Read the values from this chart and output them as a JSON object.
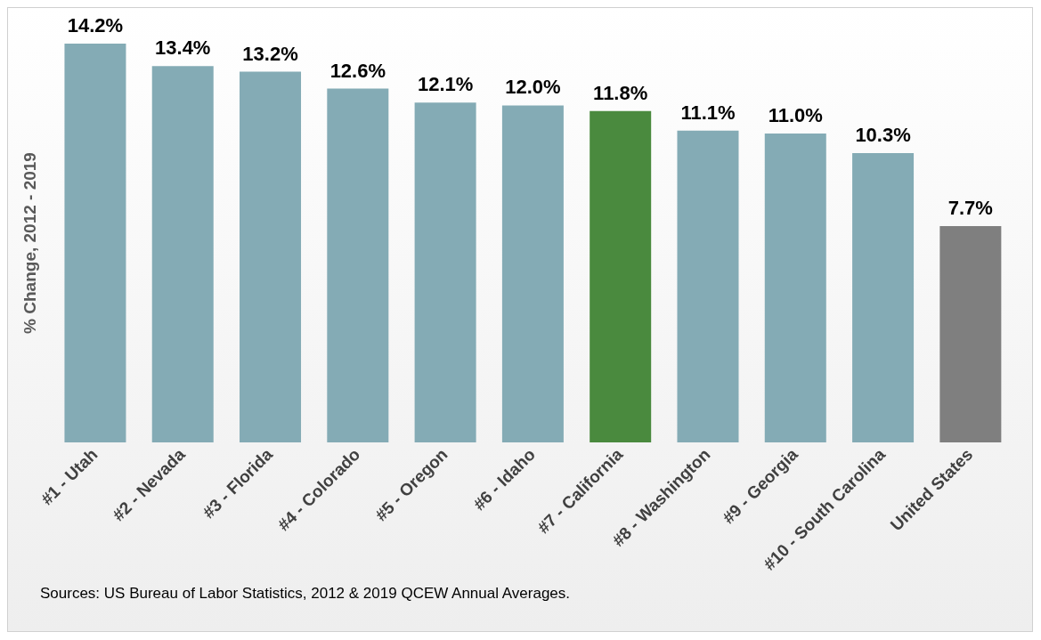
{
  "chart_data": {
    "type": "bar",
    "ylabel": "% Change, 2012 - 2019",
    "categories": [
      "#1 - Utah",
      "#2 - Nevada",
      "#3 - Florida",
      "#4 - Colorado",
      "#5 - Oregon",
      "#6 - Idaho",
      "#7 - California",
      "#8 - Washington",
      "#9 - Georgia",
      "#10 - South Carolina",
      "United States"
    ],
    "values": [
      14.2,
      13.4,
      13.2,
      12.6,
      12.1,
      12.0,
      11.8,
      11.1,
      11.0,
      10.3,
      7.7
    ],
    "colors": [
      "#84abb5",
      "#84abb5",
      "#84abb5",
      "#84abb5",
      "#84abb5",
      "#84abb5",
      "#4a8a3e",
      "#84abb5",
      "#84abb5",
      "#84abb5",
      "#7f7f7f"
    ],
    "value_labels": [
      "14.2%",
      "13.4%",
      "13.2%",
      "12.6%",
      "12.1%",
      "12.0%",
      "11.8%",
      "11.1%",
      "11.0%",
      "10.3%",
      "7.7%"
    ],
    "grid": false,
    "legend": false,
    "annotations": [
      "Sources: US Bureau of Labor Statistics, 2012 & 2019 QCEW Annual Averages."
    ]
  }
}
